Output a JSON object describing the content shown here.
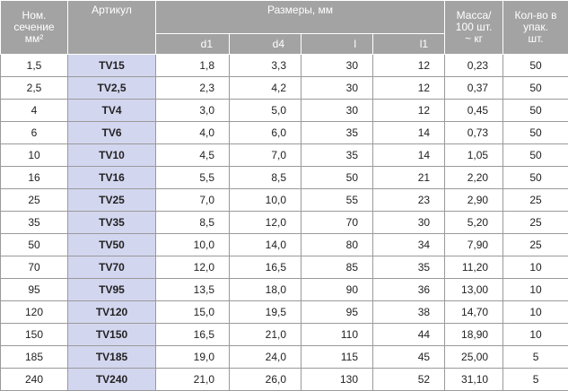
{
  "table": {
    "header": {
      "section": [
        "Ном.",
        "сечение",
        "мм²"
      ],
      "article": "Артикул",
      "sizes": "Размеры, мм",
      "size_cols": [
        "d1",
        "d4",
        "l",
        "l1"
      ],
      "mass": [
        "Масса/",
        "100 шт.",
        "~ кг"
      ],
      "qty": [
        "Кол-во в",
        "упак.",
        "шт."
      ]
    },
    "rows": [
      [
        "1,5",
        "TV15",
        "1,8",
        "3,3",
        "30",
        "12",
        "0,23",
        "50"
      ],
      [
        "2,5",
        "TV2,5",
        "2,3",
        "4,2",
        "30",
        "12",
        "0,37",
        "50"
      ],
      [
        "4",
        "TV4",
        "3,0",
        "5,0",
        "30",
        "12",
        "0,45",
        "50"
      ],
      [
        "6",
        "TV6",
        "4,0",
        "6,0",
        "35",
        "14",
        "0,73",
        "50"
      ],
      [
        "10",
        "TV10",
        "4,5",
        "7,0",
        "35",
        "14",
        "1,05",
        "50"
      ],
      [
        "16",
        "TV16",
        "5,5",
        "8,5",
        "50",
        "21",
        "2,20",
        "50"
      ],
      [
        "25",
        "TV25",
        "7,0",
        "10,0",
        "55",
        "23",
        "2,90",
        "25"
      ],
      [
        "35",
        "TV35",
        "8,5",
        "12,0",
        "70",
        "30",
        "5,20",
        "25"
      ],
      [
        "50",
        "TV50",
        "10,0",
        "14,0",
        "80",
        "34",
        "7,90",
        "25"
      ],
      [
        "70",
        "TV70",
        "12,0",
        "16,5",
        "85",
        "35",
        "11,20",
        "10"
      ],
      [
        "95",
        "TV95",
        "13,5",
        "18,0",
        "90",
        "36",
        "13,00",
        "10"
      ],
      [
        "120",
        "TV120",
        "15,0",
        "19,5",
        "95",
        "38",
        "14,70",
        "10"
      ],
      [
        "150",
        "TV150",
        "16,5",
        "21,0",
        "110",
        "44",
        "18,90",
        "10"
      ],
      [
        "185",
        "TV185",
        "19,0",
        "24,0",
        "115",
        "45",
        "25,00",
        "5"
      ],
      [
        "240",
        "TV240",
        "21,0",
        "26,0",
        "130",
        "52",
        "31,10",
        "5"
      ]
    ]
  }
}
